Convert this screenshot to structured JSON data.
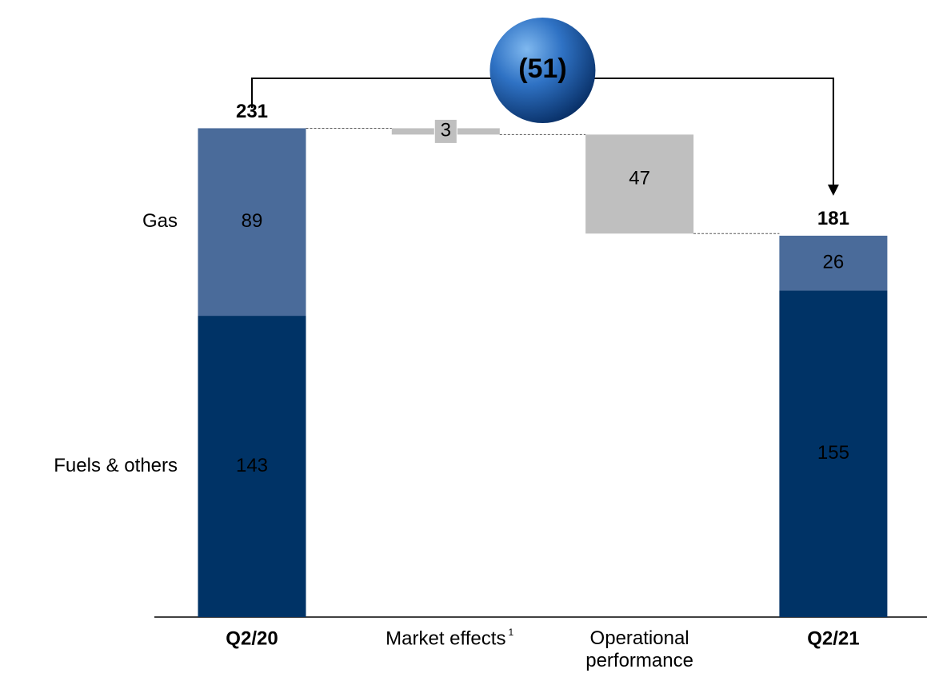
{
  "chart_data": {
    "type": "waterfall",
    "categories": [
      "Q2/20",
      "Market effects",
      "Operational performance",
      "Q2/21"
    ],
    "category_bold": [
      true,
      false,
      false,
      true
    ],
    "category_footnotes": [
      null,
      "1",
      null,
      null
    ],
    "series": [
      {
        "name": "Fuels & others",
        "color": "#003366",
        "values": [
          143,
          null,
          null,
          155
        ]
      },
      {
        "name": "Gas",
        "color": "#4a6b9a",
        "values": [
          89,
          null,
          null,
          26
        ]
      }
    ],
    "changes": {
      "color": "#bfbfbf",
      "values": [
        null,
        -3,
        -47,
        null
      ],
      "value_labels": [
        null,
        "3",
        "47",
        null
      ]
    },
    "totals": [
      231,
      null,
      null,
      181
    ],
    "total_change": {
      "value": -51,
      "label": "(51)"
    },
    "ylim": [
      0,
      250
    ]
  }
}
